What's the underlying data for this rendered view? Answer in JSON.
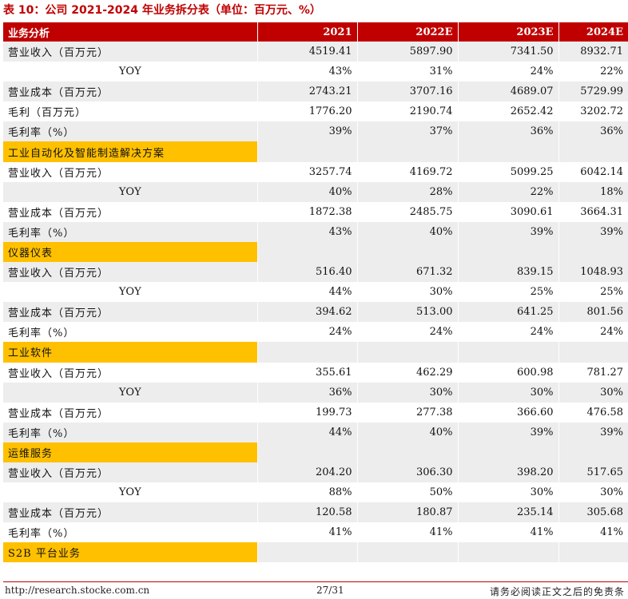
{
  "title": "表 10：公司 2021-2024 年业务拆分表（单位：百万元、%）",
  "header": [
    "业务分析",
    "2021",
    "2022E",
    "2023E",
    "2024E"
  ],
  "rows": [
    {
      "type": "data",
      "shade": true,
      "label": "营业收入（百万元）",
      "values": [
        "4519.41",
        "5897.90",
        "7341.50",
        "8932.71"
      ]
    },
    {
      "type": "yoy",
      "shade": false,
      "label": "YOY",
      "values": [
        "43%",
        "31%",
        "24%",
        "22%"
      ]
    },
    {
      "type": "data",
      "shade": true,
      "label": "营业成本（百万元）",
      "values": [
        "2743.21",
        "3707.16",
        "4689.07",
        "5729.99"
      ]
    },
    {
      "type": "data",
      "shade": false,
      "label": "毛利（百万元）",
      "values": [
        "1776.20",
        "2190.74",
        "2652.42",
        "3202.72"
      ]
    },
    {
      "type": "data",
      "shade": true,
      "label": "毛利率（%）",
      "values": [
        "39%",
        "37%",
        "36%",
        "36%"
      ]
    },
    {
      "type": "section",
      "label": "工业自动化及智能制造解决方案"
    },
    {
      "type": "data",
      "shade": false,
      "label": "营业收入（百万元）",
      "values": [
        "3257.74",
        "4169.72",
        "5099.25",
        "6042.14"
      ]
    },
    {
      "type": "yoy",
      "shade": true,
      "label": "YOY",
      "values": [
        "40%",
        "28%",
        "22%",
        "18%"
      ]
    },
    {
      "type": "data",
      "shade": false,
      "label": "营业成本（百万元）",
      "values": [
        "1872.38",
        "2485.75",
        "3090.61",
        "3664.31"
      ]
    },
    {
      "type": "data",
      "shade": true,
      "label": "毛利率（%）",
      "values": [
        "43%",
        "40%",
        "39%",
        "39%"
      ]
    },
    {
      "type": "section",
      "label": "仪器仪表"
    },
    {
      "type": "data",
      "shade": true,
      "label": "营业收入（百万元）",
      "values": [
        "516.40",
        "671.32",
        "839.15",
        "1048.93"
      ]
    },
    {
      "type": "yoy",
      "shade": false,
      "label": "YOY",
      "values": [
        "44%",
        "30%",
        "25%",
        "25%"
      ]
    },
    {
      "type": "data",
      "shade": true,
      "label": "营业成本（百万元）",
      "values": [
        "394.62",
        "513.00",
        "641.25",
        "801.56"
      ]
    },
    {
      "type": "data",
      "shade": false,
      "label": "毛利率（%）",
      "values": [
        "24%",
        "24%",
        "24%",
        "24%"
      ]
    },
    {
      "type": "section",
      "label": "工业软件"
    },
    {
      "type": "data",
      "shade": false,
      "label": "营业收入（百万元）",
      "values": [
        "355.61",
        "462.29",
        "600.98",
        "781.27"
      ]
    },
    {
      "type": "yoy",
      "shade": true,
      "label": "YOY",
      "values": [
        "36%",
        "30%",
        "30%",
        "30%"
      ]
    },
    {
      "type": "data",
      "shade": false,
      "label": "营业成本（百万元）",
      "values": [
        "199.73",
        "277.38",
        "366.60",
        "476.58"
      ]
    },
    {
      "type": "data",
      "shade": true,
      "label": "毛利率（%）",
      "values": [
        "44%",
        "40%",
        "39%",
        "39%"
      ]
    },
    {
      "type": "section",
      "label": "运维服务"
    },
    {
      "type": "data",
      "shade": true,
      "label": "营业收入（百万元）",
      "values": [
        "204.20",
        "306.30",
        "398.20",
        "517.65"
      ]
    },
    {
      "type": "yoy",
      "shade": false,
      "label": "YOY",
      "values": [
        "88%",
        "50%",
        "30%",
        "30%"
      ]
    },
    {
      "type": "data",
      "shade": true,
      "label": "营业成本（百万元）",
      "values": [
        "120.58",
        "180.87",
        "235.14",
        "305.68"
      ]
    },
    {
      "type": "data",
      "shade": false,
      "label": "毛利率（%）",
      "values": [
        "41%",
        "41%",
        "41%",
        "41%"
      ]
    },
    {
      "type": "section",
      "label": "S2B 平台业务"
    }
  ],
  "footer": {
    "left": "http://research.stocke.com.cn",
    "center": "27/31",
    "right": "请务必阅读正文之后的免责条"
  },
  "colors": {
    "header_bg": "#c00000",
    "section_bg": "#ffc000",
    "shade_bg": "#ededed"
  }
}
